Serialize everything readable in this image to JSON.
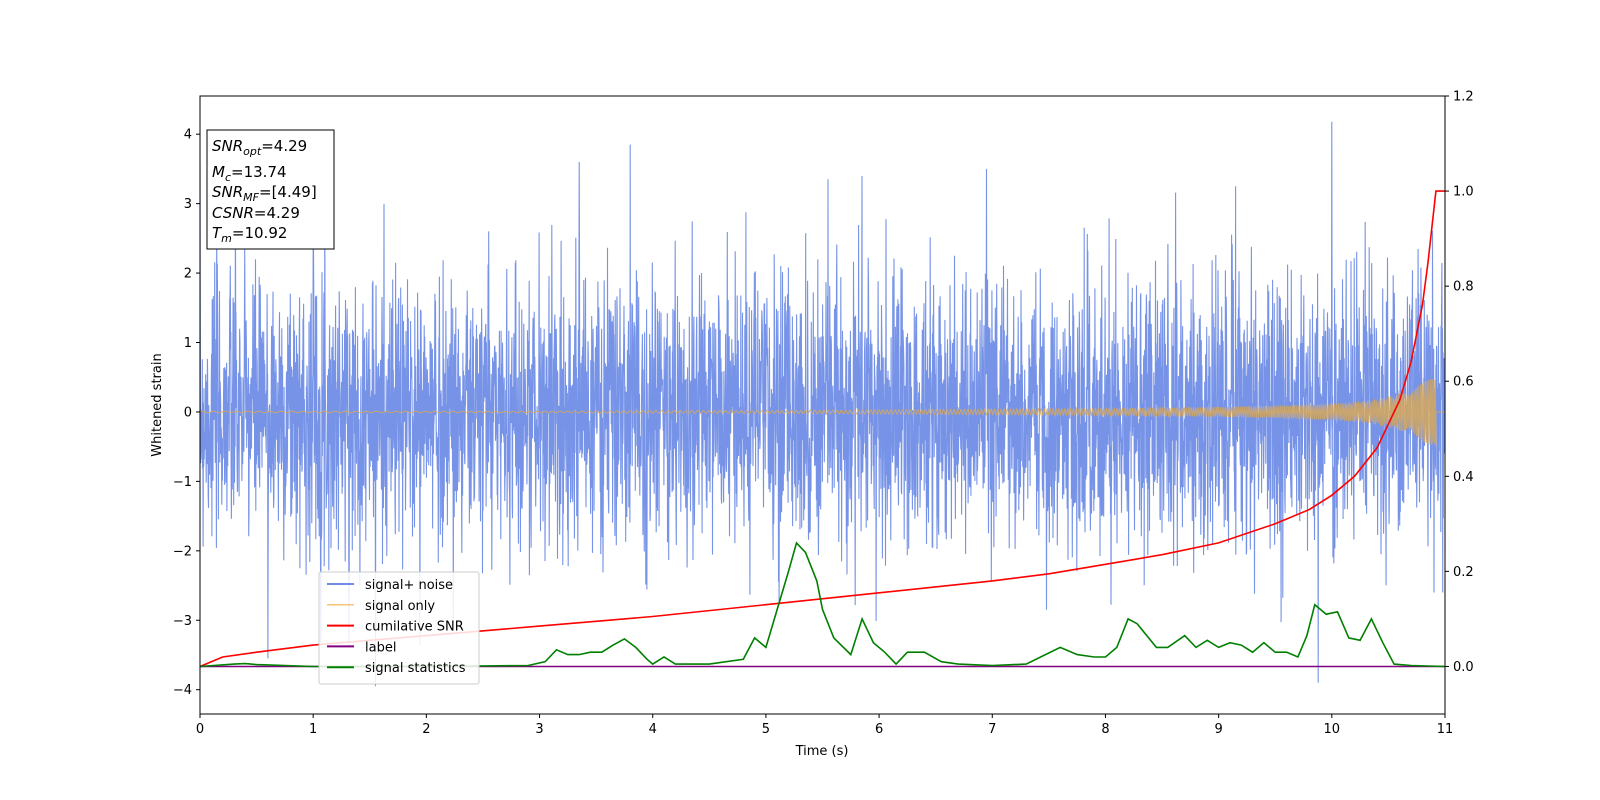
{
  "chart_data": {
    "type": "line",
    "xlabel": "Time (s)",
    "ylabel": "Whitened strain",
    "xlim": [
      0,
      11
    ],
    "ylim_left": [
      -4.35,
      4.55
    ],
    "ylim_right": [
      -0.1,
      1.2
    ],
    "xticks": [
      0,
      1,
      2,
      3,
      4,
      5,
      6,
      7,
      8,
      9,
      10,
      11
    ],
    "yticks_left": [
      -4,
      -3,
      -2,
      -1,
      0,
      1,
      2,
      3,
      4
    ],
    "yticks_right": [
      "0.0",
      "0.2",
      "0.4",
      "0.6",
      "0.8",
      "1.0",
      "1.2"
    ],
    "grid": false,
    "legend_position": "lower-left",
    "colors": {
      "signal_noise": "#6f8de6",
      "signal_only": "#f5b04a",
      "cumulative_snr": "#ff0000",
      "label": "#800080",
      "signal_statistics": "#008000"
    },
    "info_box": {
      "lines": [
        {
          "sym": "SNR",
          "sub": "opt",
          "val": "=4.29"
        },
        {
          "sym": "M",
          "sub": "c",
          "val": "=13.74"
        },
        {
          "sym": "SNR",
          "sub": "MF",
          "val": "=[4.49]"
        },
        {
          "sym": "CSNR",
          "sub": "",
          "val": "=4.29"
        },
        {
          "sym": "T",
          "sub": "m",
          "val": "=10.92"
        }
      ]
    },
    "series": [
      {
        "name": "signal+ noise",
        "axis": "left",
        "style": "noise",
        "band": 1.7,
        "range": [
          -3.95,
          4.18
        ],
        "x": [
          0.6,
          1.0,
          1.55,
          2.55,
          3.35,
          3.8,
          5.55,
          5.85,
          6.95,
          9.15,
          9.88,
          10.0,
          10.98
        ],
        "y": [
          -3.55,
          2.75,
          -3.95,
          2.6,
          3.6,
          3.85,
          3.35,
          3.4,
          3.5,
          3.25,
          -3.9,
          4.18,
          -2.6
        ]
      },
      {
        "name": "signal only",
        "axis": "left",
        "style": "chirp",
        "x": [
          0,
          1,
          2,
          3,
          4,
          5,
          6,
          7,
          8,
          9,
          9.5,
          10,
          10.3,
          10.5,
          10.7,
          10.85,
          10.92,
          11
        ],
        "y": [
          0.01,
          0.01,
          0.01,
          0.01,
          0.02,
          0.02,
          0.03,
          0.04,
          0.05,
          0.07,
          0.09,
          0.12,
          0.16,
          0.22,
          0.32,
          0.5,
          0.65,
          0
        ]
      },
      {
        "name": "cumilative SNR",
        "axis": "right",
        "x": [
          0,
          0.2,
          0.5,
          1,
          2,
          3,
          4,
          5,
          6,
          7,
          7.5,
          8,
          8.5,
          9,
          9.5,
          9.8,
          10,
          10.2,
          10.4,
          10.6,
          10.7,
          10.8,
          10.85,
          10.92,
          11
        ],
        "y": [
          0.0,
          0.02,
          0.03,
          0.045,
          0.065,
          0.085,
          0.105,
          0.13,
          0.155,
          0.18,
          0.195,
          0.215,
          0.235,
          0.26,
          0.3,
          0.33,
          0.36,
          0.4,
          0.46,
          0.56,
          0.64,
          0.76,
          0.85,
          1.0,
          1.0
        ]
      },
      {
        "name": "label",
        "axis": "right",
        "x": [
          0,
          11
        ],
        "y": [
          0,
          0
        ]
      },
      {
        "name": "signal statistics",
        "axis": "right",
        "x": [
          0,
          0.3,
          0.4,
          0.5,
          1,
          2,
          2.9,
          3.05,
          3.15,
          3.25,
          3.35,
          3.45,
          3.55,
          3.65,
          3.75,
          3.85,
          3.95,
          4.0,
          4.1,
          4.2,
          4.5,
          4.8,
          4.9,
          5.0,
          5.1,
          5.2,
          5.27,
          5.35,
          5.45,
          5.5,
          5.6,
          5.75,
          5.85,
          5.95,
          6.05,
          6.15,
          6.25,
          6.4,
          6.55,
          6.7,
          7.0,
          7.3,
          7.6,
          7.75,
          7.9,
          8.0,
          8.1,
          8.2,
          8.28,
          8.45,
          8.55,
          8.7,
          8.8,
          8.9,
          9.0,
          9.1,
          9.2,
          9.3,
          9.4,
          9.5,
          9.6,
          9.7,
          9.78,
          9.85,
          9.95,
          10.05,
          10.15,
          10.25,
          10.35,
          10.45,
          10.55,
          10.7,
          11
        ],
        "y": [
          0.0,
          0.005,
          0.006,
          0.004,
          0.0,
          0.0,
          0.002,
          0.01,
          0.035,
          0.025,
          0.025,
          0.03,
          0.03,
          0.045,
          0.058,
          0.04,
          0.015,
          0.005,
          0.02,
          0.005,
          0.005,
          0.015,
          0.06,
          0.04,
          0.12,
          0.2,
          0.26,
          0.24,
          0.18,
          0.12,
          0.06,
          0.025,
          0.1,
          0.05,
          0.03,
          0.005,
          0.03,
          0.03,
          0.01,
          0.005,
          0.002,
          0.005,
          0.04,
          0.025,
          0.02,
          0.02,
          0.04,
          0.1,
          0.09,
          0.04,
          0.04,
          0.065,
          0.04,
          0.055,
          0.04,
          0.05,
          0.045,
          0.03,
          0.05,
          0.03,
          0.03,
          0.02,
          0.065,
          0.13,
          0.11,
          0.115,
          0.06,
          0.055,
          0.1,
          0.05,
          0.005,
          0.002,
          0.0
        ]
      }
    ]
  }
}
